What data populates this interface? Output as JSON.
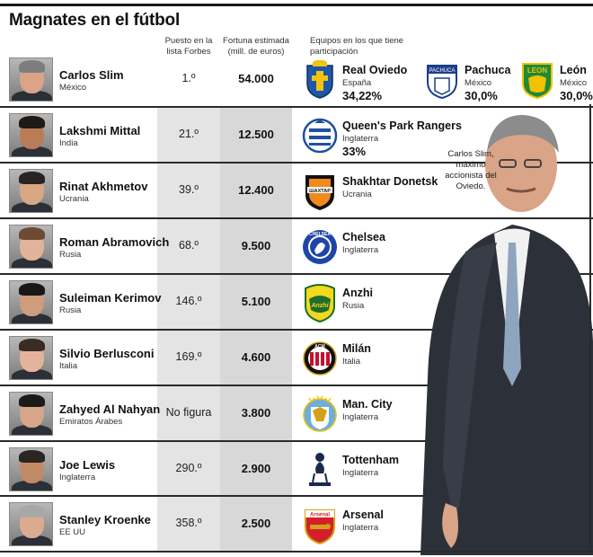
{
  "title": "Magnates en el fútbol",
  "headers": {
    "rank": "Puesto en la lista Forbes",
    "fortune": "Fortuna estimada (mill. de euros)",
    "teams": "Equipos en los que tiene participación"
  },
  "caption": "Carlos Slim, máximo accionista del Oviedo.",
  "rows": [
    {
      "name": "Carlos Slim",
      "country": "México",
      "rank": "1.º",
      "fortune": "54.000",
      "teams": [
        {
          "name": "Real Oviedo",
          "country": "España",
          "pct": "34,22%",
          "crest": "real-oviedo-crest",
          "color": "#1f57a8"
        },
        {
          "name": "Pachuca",
          "country": "México",
          "pct": "30,0%",
          "crest": "pachuca-crest",
          "color": "#1c3f8a"
        },
        {
          "name": "León",
          "country": "México",
          "pct": "30,0%",
          "crest": "leon-crest",
          "color": "#1d8a3a"
        }
      ]
    },
    {
      "name": "Lakshmi Mittal",
      "country": "India",
      "rank": "21.º",
      "fortune": "12.500",
      "teams": [
        {
          "name": "Queen's Park Rangers",
          "country": "Inglaterra",
          "pct": "33%",
          "crest": "qpr-crest",
          "color": "#1f4fa0"
        }
      ]
    },
    {
      "name": "Rinat Akhmetov",
      "country": "Ucrania",
      "rank": "39.º",
      "fortune": "12.400",
      "teams": [
        {
          "name": "Shakhtar Donetsk",
          "country": "Ucrania",
          "crest": "shakhtar-crest",
          "color": "#f28a1a"
        }
      ]
    },
    {
      "name": "Roman Abramovich",
      "country": "Rusia",
      "rank": "68.º",
      "fortune": "9.500",
      "teams": [
        {
          "name": "Chelsea",
          "country": "Inglaterra",
          "crest": "chelsea-crest",
          "color": "#1f45a8"
        }
      ]
    },
    {
      "name": "Suleiman Kerimov",
      "country": "Rusia",
      "rank": "146.º",
      "fortune": "5.100",
      "teams": [
        {
          "name": "Anzhi",
          "country": "Rusia",
          "crest": "anzhi-crest",
          "color": "#f2d81e"
        }
      ]
    },
    {
      "name": "Silvio Berlusconi",
      "country": "Italia",
      "rank": "169.º",
      "fortune": "4.600",
      "teams": [
        {
          "name": "Milán",
          "country": "Italia",
          "crest": "milan-crest",
          "color": "#c8102e"
        }
      ]
    },
    {
      "name": "Zahyed Al Nahyan",
      "country": "Emiratos Árabes",
      "rank": "No figura",
      "fortune": "3.800",
      "teams": [
        {
          "name": "Man. City",
          "country": "Inglaterra",
          "crest": "man-city-crest",
          "color": "#6caee0"
        }
      ]
    },
    {
      "name": "Joe Lewis",
      "country": "Inglaterra",
      "rank": "290.º",
      "fortune": "2.900",
      "teams": [
        {
          "name": "Tottenham",
          "country": "Inglaterra",
          "crest": "tottenham-crest",
          "color": "#1a2a4a"
        }
      ]
    },
    {
      "name": "Stanley Kroenke",
      "country": "EE UU",
      "rank": "358.º",
      "fortune": "2.500",
      "teams": [
        {
          "name": "Arsenal",
          "country": "Inglaterra",
          "crest": "arsenal-crest",
          "color": "#d31f2a"
        }
      ]
    }
  ],
  "crest_texts": {
    "shakhtar": "ШАХТАР",
    "leon": "LEON",
    "pachuca": "PACHUCA",
    "chelsea": "CHELSEA",
    "milan": "ACM",
    "anzhi": "Anzhi",
    "arsenal": "Arsenal"
  }
}
